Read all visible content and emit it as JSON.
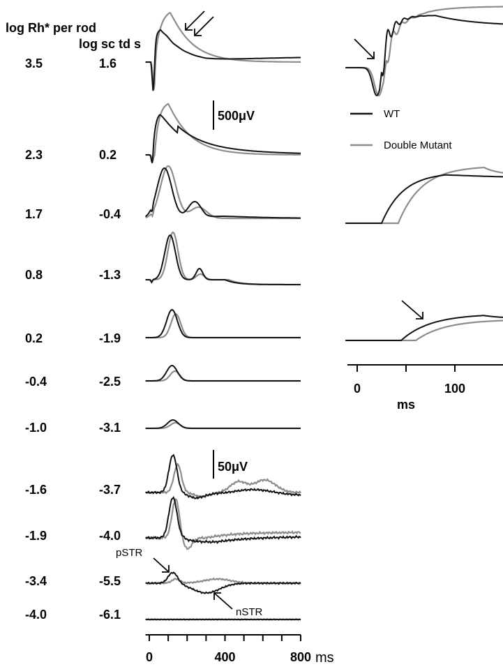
{
  "chart_data": {
    "type": "line",
    "header": {
      "col_rh": "log Rh* per rod",
      "col_sc": "log sc td s"
    },
    "rows": [
      {
        "rh": "3.5",
        "sc": "1.6"
      },
      {
        "rh": "2.3",
        "sc": "0.2"
      },
      {
        "rh": "1.7",
        "sc": "-0.4"
      },
      {
        "rh": "0.8",
        "sc": "-1.3"
      },
      {
        "rh": "0.2",
        "sc": "-1.9"
      },
      {
        "rh": "-0.4",
        "sc": "-2.5"
      },
      {
        "rh": "-1.0",
        "sc": "-3.1"
      },
      {
        "rh": "-1.6",
        "sc": "-3.7"
      },
      {
        "rh": "-1.9",
        "sc": "-4.0"
      },
      {
        "rh": "-3.4",
        "sc": "-5.5"
      },
      {
        "rh": "-4.0",
        "sc": "-6.1"
      }
    ],
    "scale_bars": {
      "upper": "500μV",
      "lower": "50μV"
    },
    "legend": {
      "position": "top-right",
      "entries": [
        {
          "label": "WT",
          "color": "#111111"
        },
        {
          "label": "Double Mutant",
          "color": "#8c8c8c"
        }
      ]
    },
    "annotations": {
      "pstr": "pSTR",
      "nstr": "nSTR"
    },
    "left_x_axis": {
      "ticks": [
        {
          "value": 0,
          "label": "0"
        },
        {
          "value": 400,
          "label": "400"
        },
        {
          "value": 800,
          "label": "800"
        }
      ],
      "minor_step": 100,
      "range": [
        -20,
        800
      ],
      "unit": "ms"
    },
    "right_x_axis": {
      "ticks": [
        {
          "value": 0,
          "label": "0"
        },
        {
          "value": 100,
          "label": "100"
        }
      ],
      "minor_step": 50,
      "range": [
        -10,
        150
      ],
      "unit": "ms"
    },
    "series_colors": {
      "wt": "#111111",
      "mutant": "#8c8c8c"
    }
  }
}
